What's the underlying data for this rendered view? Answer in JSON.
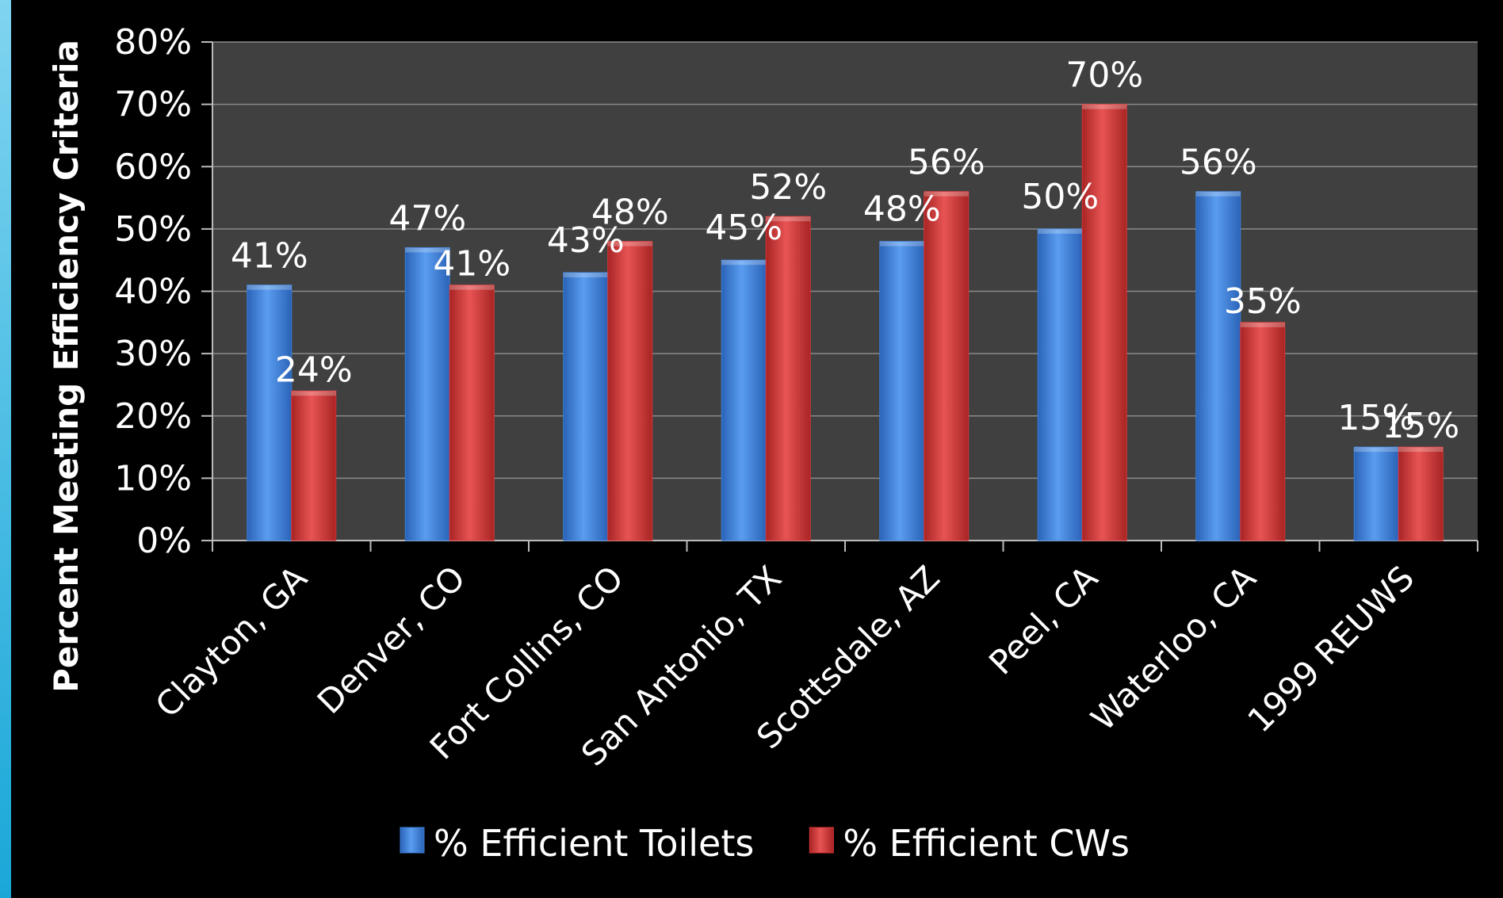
{
  "chart_data": {
    "type": "bar",
    "title": "",
    "xlabel": "",
    "ylabel": "Percent Meeting Efficiency Criteria",
    "ylim": [
      0,
      80
    ],
    "yticks": [
      "0%",
      "10%",
      "20%",
      "30%",
      "40%",
      "50%",
      "60%",
      "70%",
      "80%"
    ],
    "grid": true,
    "legend_position": "bottom",
    "categories": [
      "Clayton, GA",
      "Denver, CO",
      "Fort Collins, CO",
      "San Antonio, TX",
      "Scottsdale, AZ",
      "Peel, CA",
      "Waterloo, CA",
      "1999 REUWS"
    ],
    "series": [
      {
        "name": "% Efficient Toilets",
        "color": "#3a7fd8",
        "values": [
          41,
          47,
          43,
          45,
          48,
          50,
          56,
          15
        ],
        "labels": [
          "41%",
          "47%",
          "43%",
          "45%",
          "48%",
          "50%",
          "56%",
          "15%"
        ]
      },
      {
        "name": "% Efficient CWs",
        "color": "#d83434",
        "values": [
          24,
          41,
          48,
          52,
          56,
          70,
          35,
          15
        ],
        "labels": [
          "24%",
          "41%",
          "48%",
          "52%",
          "56%",
          "70%",
          "35%",
          "15%"
        ]
      }
    ]
  }
}
